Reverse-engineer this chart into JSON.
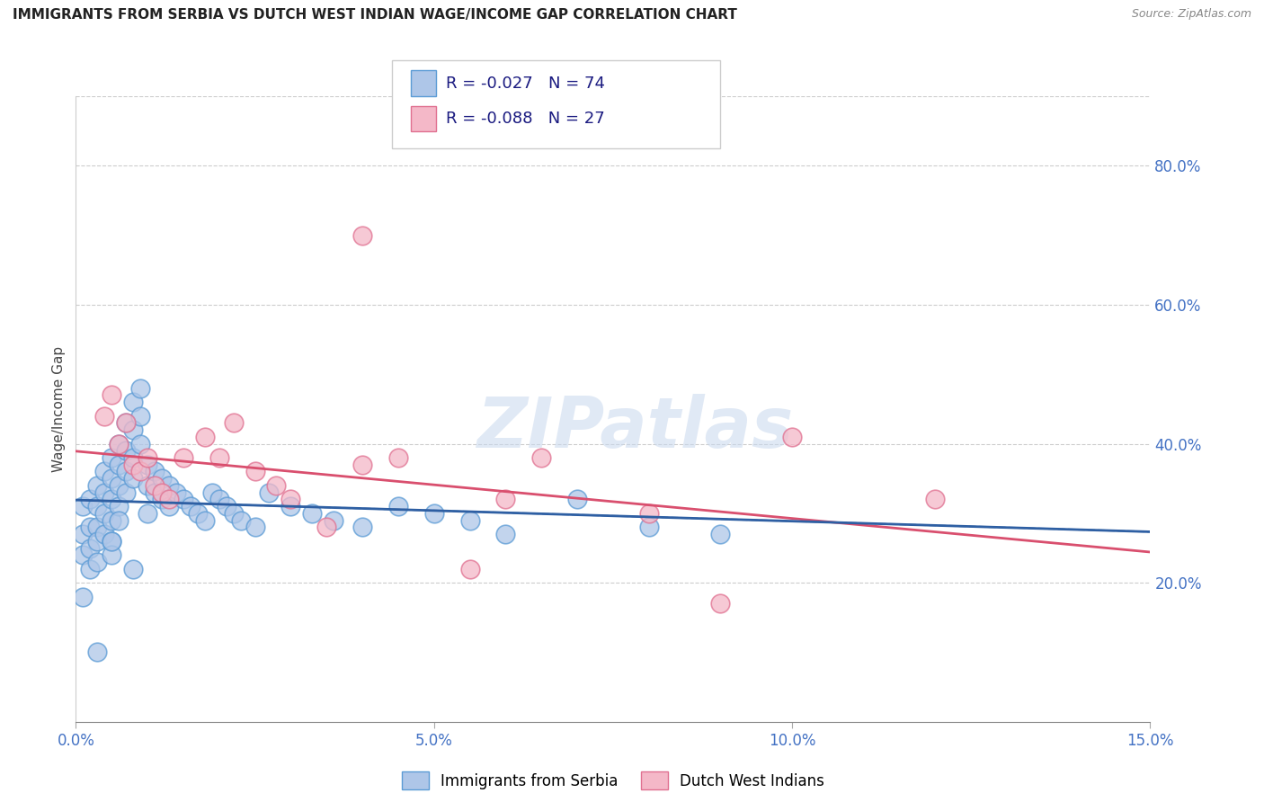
{
  "title": "IMMIGRANTS FROM SERBIA VS DUTCH WEST INDIAN WAGE/INCOME GAP CORRELATION CHART",
  "source": "Source: ZipAtlas.com",
  "ylabel": "Wage/Income Gap",
  "xlim": [
    0.0,
    0.15
  ],
  "ylim": [
    0.0,
    0.9
  ],
  "xticks": [
    0.0,
    0.05,
    0.1,
    0.15
  ],
  "xtick_labels": [
    "0.0%",
    "5.0%",
    "10.0%",
    "15.0%"
  ],
  "yticks_right": [
    0.2,
    0.4,
    0.6,
    0.8
  ],
  "ytick_labels_right": [
    "20.0%",
    "40.0%",
    "60.0%",
    "80.0%"
  ],
  "series1_label": "Immigrants from Serbia",
  "series1_R": "-0.027",
  "series1_N": "74",
  "series1_color": "#aec6e8",
  "series1_edge_color": "#5b9bd5",
  "series2_label": "Dutch West Indians",
  "series2_R": "-0.088",
  "series2_N": "27",
  "series2_color": "#f4b8c8",
  "series2_edge_color": "#e07090",
  "trend1_color": "#2e5fa3",
  "trend2_color": "#d94f6e",
  "watermark": "ZIPatlas",
  "series1_x": [
    0.001,
    0.001,
    0.001,
    0.002,
    0.002,
    0.002,
    0.002,
    0.003,
    0.003,
    0.003,
    0.003,
    0.003,
    0.004,
    0.004,
    0.004,
    0.004,
    0.005,
    0.005,
    0.005,
    0.005,
    0.005,
    0.005,
    0.006,
    0.006,
    0.006,
    0.006,
    0.006,
    0.007,
    0.007,
    0.007,
    0.007,
    0.008,
    0.008,
    0.008,
    0.008,
    0.009,
    0.009,
    0.009,
    0.01,
    0.01,
    0.01,
    0.011,
    0.011,
    0.012,
    0.012,
    0.013,
    0.013,
    0.014,
    0.015,
    0.016,
    0.017,
    0.018,
    0.019,
    0.02,
    0.021,
    0.022,
    0.023,
    0.025,
    0.027,
    0.03,
    0.033,
    0.036,
    0.04,
    0.045,
    0.05,
    0.055,
    0.06,
    0.07,
    0.08,
    0.09,
    0.001,
    0.003,
    0.005,
    0.008
  ],
  "series1_y": [
    0.31,
    0.27,
    0.24,
    0.32,
    0.28,
    0.25,
    0.22,
    0.34,
    0.31,
    0.28,
    0.26,
    0.23,
    0.36,
    0.33,
    0.3,
    0.27,
    0.38,
    0.35,
    0.32,
    0.29,
    0.26,
    0.24,
    0.4,
    0.37,
    0.34,
    0.31,
    0.29,
    0.43,
    0.39,
    0.36,
    0.33,
    0.46,
    0.42,
    0.38,
    0.35,
    0.48,
    0.44,
    0.4,
    0.37,
    0.34,
    0.3,
    0.36,
    0.33,
    0.35,
    0.32,
    0.34,
    0.31,
    0.33,
    0.32,
    0.31,
    0.3,
    0.29,
    0.33,
    0.32,
    0.31,
    0.3,
    0.29,
    0.28,
    0.33,
    0.31,
    0.3,
    0.29,
    0.28,
    0.31,
    0.3,
    0.29,
    0.27,
    0.32,
    0.28,
    0.27,
    0.18,
    0.1,
    0.26,
    0.22
  ],
  "series2_x": [
    0.004,
    0.005,
    0.006,
    0.007,
    0.008,
    0.009,
    0.01,
    0.011,
    0.012,
    0.013,
    0.015,
    0.018,
    0.02,
    0.022,
    0.025,
    0.028,
    0.03,
    0.035,
    0.04,
    0.045,
    0.055,
    0.06,
    0.065,
    0.08,
    0.09,
    0.1,
    0.12
  ],
  "series2_y": [
    0.44,
    0.47,
    0.4,
    0.43,
    0.37,
    0.36,
    0.38,
    0.34,
    0.33,
    0.32,
    0.38,
    0.41,
    0.38,
    0.43,
    0.36,
    0.34,
    0.32,
    0.28,
    0.37,
    0.38,
    0.22,
    0.32,
    0.38,
    0.3,
    0.17,
    0.41,
    0.32
  ],
  "trend1_intercept": 0.335,
  "trend1_slope": -0.27,
  "trend2_intercept": 0.36,
  "trend2_slope": -0.18
}
